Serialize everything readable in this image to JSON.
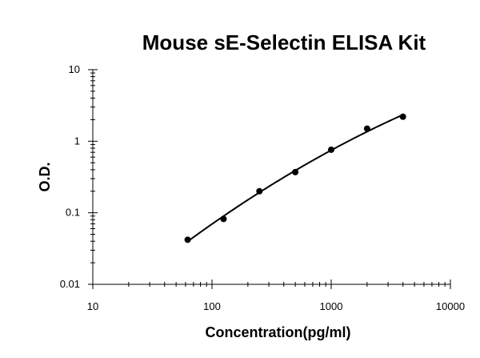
{
  "chart_data": {
    "type": "scatter",
    "title": "Mouse sE-Selectin ELISA Kit",
    "xlabel": "Concentration(pg/ml)",
    "ylabel": "O.D.",
    "xscale": "log",
    "yscale": "log",
    "xlim": [
      10,
      10000
    ],
    "ylim": [
      0.01,
      10
    ],
    "x_ticks": [
      "10",
      "100",
      "1000",
      "10000"
    ],
    "y_ticks": [
      "0.01",
      "0.1",
      "1",
      "10"
    ],
    "grid": false,
    "legend": "none",
    "series": [
      {
        "x": [
          62.5,
          125,
          250,
          500,
          1000,
          2000,
          4000
        ],
        "y": [
          0.042,
          0.082,
          0.2,
          0.37,
          0.76,
          1.5,
          2.2
        ],
        "fit": "smooth-curve"
      }
    ],
    "colors": {
      "marker": "#000000",
      "line": "#000000",
      "axis": "#000000"
    }
  }
}
